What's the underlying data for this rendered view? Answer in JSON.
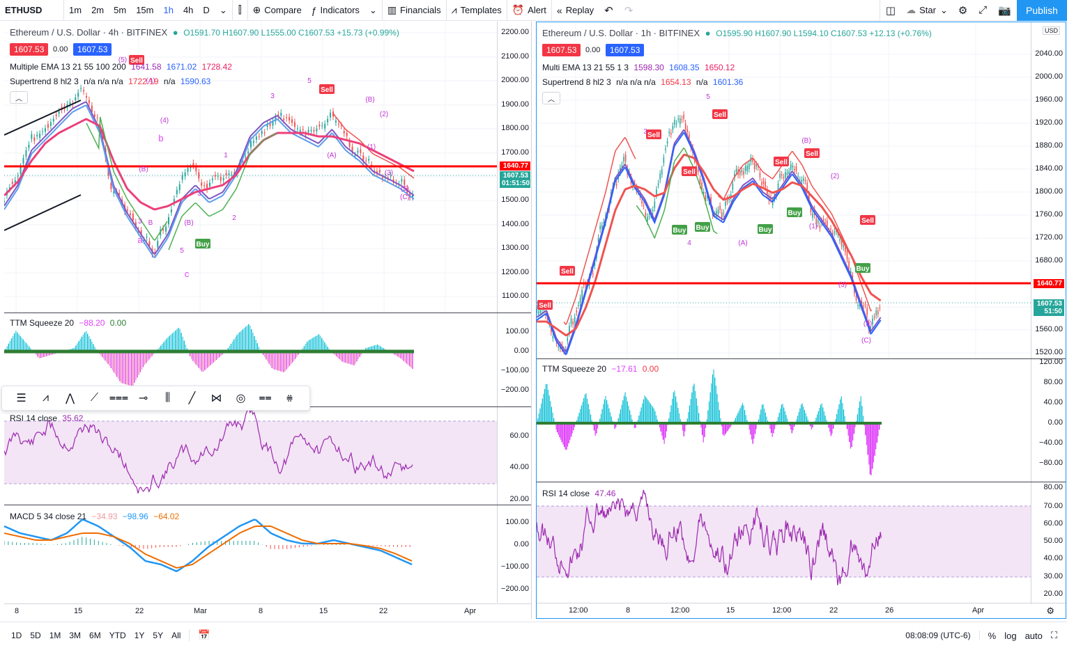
{
  "toolbar": {
    "symbol": "ETHUSD",
    "intervals": [
      "1m",
      "2m",
      "5m",
      "15m",
      "1h",
      "4h",
      "D"
    ],
    "active_interval": "1h",
    "compare": "Compare",
    "indicators": "Indicators",
    "financials": "Financials",
    "templates": "Templates",
    "alert": "Alert",
    "replay": "Replay",
    "star": "Star",
    "publish": "Publish"
  },
  "left": {
    "title": "Ethereum / U.S. Dollar · 4h · BITFINEX",
    "ohlc": "O1591.70 H1607.90 L1555.00 C1607.53 +15.73 (+0.99%)",
    "bid": "1607.53",
    "spread": "0.00",
    "ask": "1607.53",
    "ema_name": "Multiple EMA 13 21 55 100 200",
    "ema_vals": [
      "1641.58",
      "1671.02",
      "1728.42"
    ],
    "st_name": "Supertrend 8 hl2 3",
    "st_vals": "n/a n/a n/a",
    "st_v1": "1722.19",
    "st_v2": "n/a",
    "st_v3": "1590.63",
    "price_ticks": [
      "2200.00",
      "2100.00",
      "2000.00",
      "1900.00",
      "1800.00",
      "1700.00",
      "1600.00",
      "1500.00",
      "1400.00",
      "1300.00",
      "1200.00",
      "1100.00"
    ],
    "hline_price": "1640.77",
    "last_price": "1607.53",
    "countdown": "01:51:50",
    "ttm_name": "TTM Squeeze 20",
    "ttm_v1": "−88.20",
    "ttm_v2": "0.00",
    "ttm_ticks": [
      "100.00",
      "0.00",
      "−100.00",
      "−200.00"
    ],
    "rsi_name": "RSI 14 close",
    "rsi_val": "35.62",
    "rsi_ticks": [
      "60.00",
      "40.00",
      "20.00"
    ],
    "macd_name": "MACD 5 34 close 21",
    "macd_v1": "−34.93",
    "macd_v2": "−98.96",
    "macd_v3": "−64.02",
    "macd_ticks": [
      "100.00",
      "0.00",
      "−100.00",
      "−200.00"
    ],
    "x_labels": [
      "8",
      "15",
      "22",
      "Mar",
      "8",
      "15",
      "22",
      "Apr"
    ],
    "buy_label": "Buy",
    "sell_label": "Sell"
  },
  "right": {
    "title": "Ethereum / U.S. Dollar · 1h · BITFINEX",
    "ohlc": "O1595.90 H1607.90 L1594.10 C1607.53 +12.13 (+0.76%)",
    "bid": "1607.53",
    "spread": "0.00",
    "ask": "1607.53",
    "ema_name": "Multi EMA 13 21 55 1 3",
    "ema_vals": [
      "1598.30",
      "1608.35",
      "1650.12"
    ],
    "st_name": "Supertrend 8 hl2 3",
    "st_v1": "n/a n/a n/a",
    "st_v2": "1654.13",
    "st_v3": "n/a",
    "st_v4": "1601.36",
    "currency": "USD",
    "price_ticks": [
      "2040.00",
      "2000.00",
      "1960.00",
      "1920.00",
      "1880.00",
      "1840.00",
      "1800.00",
      "1760.00",
      "1720.00",
      "1680.00",
      "1640.00",
      "1600.00",
      "1560.00",
      "1520.00"
    ],
    "hline_price": "1640.77",
    "last_price": "1607.53",
    "countdown": "51:50",
    "ttm_name": "TTM Squeeze 20",
    "ttm_v1": "−17.61",
    "ttm_v2": "0.00",
    "ttm_ticks": [
      "120.00",
      "80.00",
      "40.00",
      "0.00",
      "−40.00",
      "−80.00"
    ],
    "rsi_name": "RSI 14 close",
    "rsi_val": "47.46",
    "rsi_ticks": [
      "80.00",
      "70.00",
      "60.00",
      "50.00",
      "40.00",
      "30.00",
      "20.00"
    ],
    "x_labels": [
      "12:00",
      "8",
      "12:00",
      "15",
      "12:00",
      "22",
      "26",
      "Apr"
    ],
    "buy_label": "Buy",
    "sell_label": "Sell"
  },
  "bottom": {
    "ranges": [
      "1D",
      "5D",
      "1M",
      "3M",
      "6M",
      "YTD",
      "1Y",
      "5Y",
      "All"
    ],
    "time": "08:08:09 (UTC-6)",
    "percent": "%",
    "log": "log",
    "auto": "auto"
  },
  "colors": {
    "accent": "#2196f3",
    "bid_red": "#f23645",
    "ask_blue": "#2962ff",
    "hline": "#ff0000",
    "buy_green": "#4caf50",
    "sell_red": "#f23645"
  }
}
